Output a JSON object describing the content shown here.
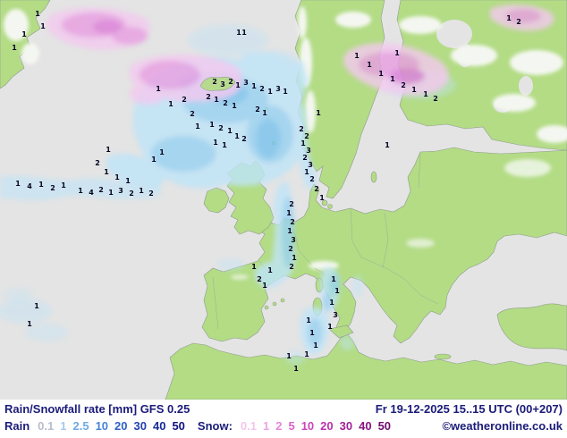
{
  "footer": {
    "title": "Rain/Snowfall rate [mm] GFS 0.25",
    "datetime": "Fr 19-12-2025 15..15 UTC (00+207)",
    "rain_label": "Rain",
    "snow_label": "Snow:",
    "copyright": "©weatheronline.co.uk",
    "rain_scale": [
      {
        "v": "0.1",
        "c": "#b9bdc9"
      },
      {
        "v": "1",
        "c": "#a5c9f0"
      },
      {
        "v": "2.5",
        "c": "#6fa9e6"
      },
      {
        "v": "10",
        "c": "#4585d8"
      },
      {
        "v": "20",
        "c": "#2f5fc6"
      },
      {
        "v": "30",
        "c": "#2240b0"
      },
      {
        "v": "40",
        "c": "#182a98"
      },
      {
        "v": "50",
        "c": "#101380"
      }
    ],
    "snow_scale": [
      {
        "v": "0.1",
        "c": "#f2c6ec"
      },
      {
        "v": "1",
        "c": "#eba6e2"
      },
      {
        "v": "2",
        "c": "#e387d8"
      },
      {
        "v": "5",
        "c": "#d863c8"
      },
      {
        "v": "10",
        "c": "#cc45bc"
      },
      {
        "v": "20",
        "c": "#b831ac"
      },
      {
        "v": "30",
        "c": "#a02198"
      },
      {
        "v": "40",
        "c": "#881484"
      },
      {
        "v": "50",
        "c": "#700c70"
      }
    ]
  },
  "map": {
    "colors": {
      "sea": "#e4e4e4",
      "land": "#b3dc85",
      "rain_light": "#bfe4f8",
      "rain_core": "#99d2f2",
      "rain_deep": "#7cc4ee",
      "snow_light": "#f3c9ef",
      "snow_core": "#e89fe2",
      "snow_deep": "#dd7fd8",
      "value_text": "#00001e"
    },
    "values": [
      [
        42,
        16,
        "1"
      ],
      [
        27,
        39,
        "1"
      ],
      [
        16,
        54,
        "1"
      ],
      [
        48,
        30,
        "1"
      ],
      [
        267,
        37,
        "1"
      ],
      [
        273,
        37,
        "1"
      ],
      [
        240,
        92,
        "2"
      ],
      [
        249,
        95,
        "3"
      ],
      [
        258,
        92,
        "2"
      ],
      [
        266,
        96,
        "1"
      ],
      [
        275,
        93,
        "3"
      ],
      [
        284,
        97,
        "1"
      ],
      [
        293,
        100,
        "2"
      ],
      [
        302,
        103,
        "1"
      ],
      [
        311,
        100,
        "3"
      ],
      [
        319,
        103,
        "1"
      ],
      [
        233,
        109,
        "2"
      ],
      [
        242,
        112,
        "1"
      ],
      [
        252,
        116,
        "2"
      ],
      [
        262,
        119,
        "1"
      ],
      [
        288,
        123,
        "2"
      ],
      [
        296,
        127,
        "1"
      ],
      [
        237,
        140,
        "1"
      ],
      [
        247,
        144,
        "2"
      ],
      [
        257,
        147,
        "1"
      ],
      [
        265,
        153,
        "1"
      ],
      [
        273,
        156,
        "2"
      ],
      [
        241,
        160,
        "1"
      ],
      [
        251,
        163,
        "1"
      ],
      [
        177,
        100,
        "1"
      ],
      [
        191,
        117,
        "1"
      ],
      [
        206,
        112,
        "2"
      ],
      [
        215,
        128,
        "2"
      ],
      [
        221,
        142,
        "1"
      ],
      [
        181,
        171,
        "1"
      ],
      [
        172,
        179,
        "1"
      ],
      [
        121,
        168,
        "1"
      ],
      [
        109,
        183,
        "2"
      ],
      [
        119,
        193,
        "1"
      ],
      [
        131,
        199,
        "1"
      ],
      [
        143,
        203,
        "1"
      ],
      [
        20,
        206,
        "1"
      ],
      [
        33,
        209,
        "4"
      ],
      [
        46,
        207,
        "1"
      ],
      [
        59,
        211,
        "2"
      ],
      [
        71,
        208,
        "1"
      ],
      [
        90,
        214,
        "1"
      ],
      [
        102,
        216,
        "4"
      ],
      [
        113,
        213,
        "2"
      ],
      [
        124,
        216,
        "1"
      ],
      [
        135,
        214,
        "3"
      ],
      [
        147,
        217,
        "2"
      ],
      [
        158,
        214,
        "1"
      ],
      [
        169,
        217,
        "2"
      ],
      [
        337,
        145,
        "2"
      ],
      [
        343,
        153,
        "2"
      ],
      [
        339,
        161,
        "1"
      ],
      [
        345,
        169,
        "3"
      ],
      [
        341,
        177,
        "2"
      ],
      [
        347,
        185,
        "3"
      ],
      [
        343,
        193,
        "1"
      ],
      [
        349,
        201,
        "2"
      ],
      [
        356,
        127,
        "1"
      ],
      [
        326,
        229,
        "2"
      ],
      [
        323,
        239,
        "1"
      ],
      [
        327,
        249,
        "2"
      ],
      [
        324,
        259,
        "1"
      ],
      [
        328,
        269,
        "3"
      ],
      [
        325,
        279,
        "2"
      ],
      [
        329,
        289,
        "1"
      ],
      [
        326,
        299,
        "2"
      ],
      [
        302,
        303,
        "1"
      ],
      [
        290,
        313,
        "2"
      ],
      [
        284,
        299,
        "1"
      ],
      [
        296,
        320,
        "1"
      ],
      [
        373,
        313,
        "1"
      ],
      [
        377,
        326,
        "1"
      ],
      [
        371,
        339,
        "1"
      ],
      [
        375,
        353,
        "3"
      ],
      [
        369,
        366,
        "1"
      ],
      [
        345,
        359,
        "1"
      ],
      [
        349,
        373,
        "1"
      ],
      [
        353,
        387,
        "1"
      ],
      [
        343,
        397,
        "1"
      ],
      [
        323,
        399,
        "1"
      ],
      [
        331,
        413,
        "1"
      ],
      [
        399,
        63,
        "1"
      ],
      [
        413,
        73,
        "1"
      ],
      [
        426,
        83,
        "1"
      ],
      [
        439,
        89,
        "1"
      ],
      [
        451,
        96,
        "2"
      ],
      [
        463,
        101,
        "1"
      ],
      [
        476,
        106,
        "1"
      ],
      [
        487,
        111,
        "2"
      ],
      [
        433,
        163,
        "1"
      ],
      [
        444,
        60,
        "1"
      ],
      [
        569,
        21,
        "1"
      ],
      [
        580,
        25,
        "2"
      ],
      [
        41,
        343,
        "1"
      ],
      [
        33,
        363,
        "1"
      ],
      [
        354,
        212,
        "2"
      ],
      [
        360,
        222,
        "1"
      ]
    ]
  }
}
